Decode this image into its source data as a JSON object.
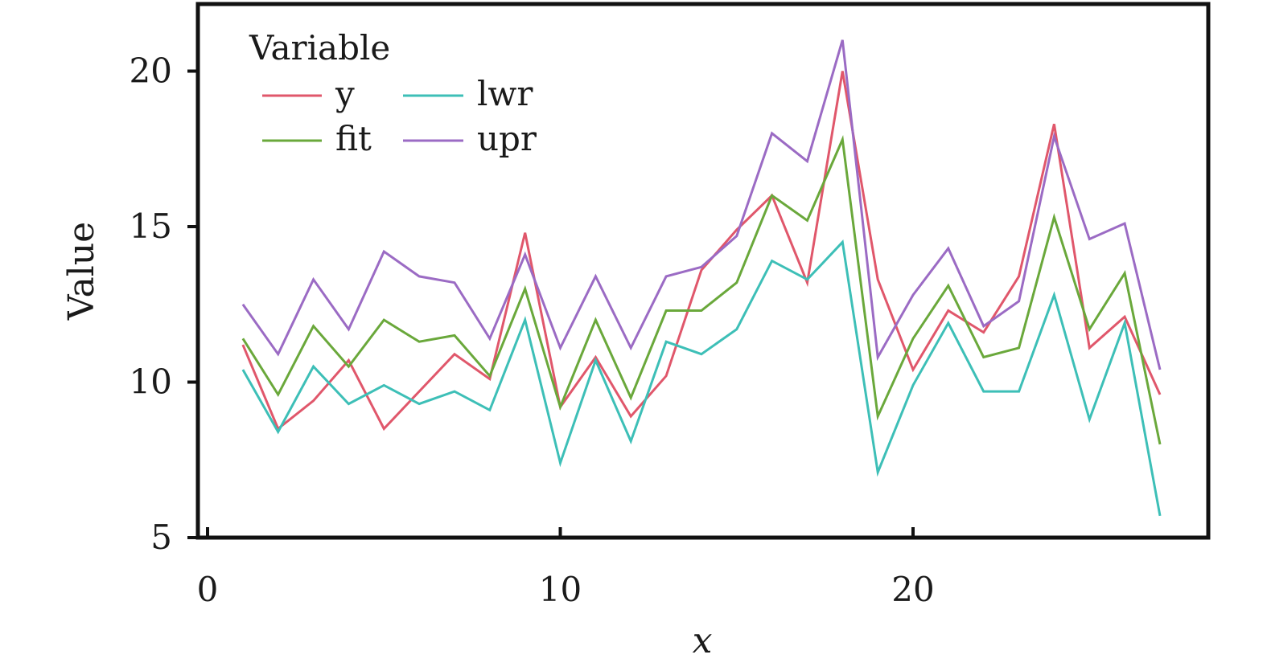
{
  "chart_data": {
    "type": "line",
    "xlabel": "x",
    "ylabel": "Value",
    "xlim": [
      0,
      28
    ],
    "ylim": [
      5,
      21.5
    ],
    "xticks": [
      0,
      10,
      20
    ],
    "yticks": [
      5,
      10,
      15,
      20
    ],
    "grid": false,
    "legend_title": "Variable",
    "legend_position": "top-left",
    "x": [
      1,
      2,
      3,
      4,
      5,
      6,
      7,
      8,
      9,
      10,
      11,
      12,
      13,
      14,
      15,
      16,
      17,
      18,
      19,
      20,
      21,
      22,
      23,
      24,
      25,
      26,
      27
    ],
    "series": [
      {
        "name": "y",
        "color": "#e0576b",
        "values": [
          11.2,
          8.5,
          9.4,
          10.7,
          8.5,
          9.7,
          10.9,
          10.1,
          14.8,
          9.2,
          10.8,
          8.9,
          10.2,
          13.6,
          14.9,
          16.0,
          13.2,
          20.0,
          13.3,
          10.4,
          12.3,
          11.6,
          13.4,
          18.3,
          11.1,
          12.1,
          9.6
        ]
      },
      {
        "name": "lwr",
        "color": "#3dbfb7",
        "values": [
          10.4,
          8.4,
          10.5,
          9.3,
          9.9,
          9.3,
          9.7,
          9.1,
          12.0,
          7.4,
          10.7,
          8.1,
          11.3,
          10.9,
          11.7,
          13.9,
          13.3,
          14.5,
          7.1,
          9.9,
          11.9,
          9.7,
          9.7,
          12.8,
          8.8,
          11.9,
          5.7
        ]
      },
      {
        "name": "fit",
        "color": "#6aa83b",
        "values": [
          11.4,
          9.6,
          11.8,
          10.5,
          12.0,
          11.3,
          11.5,
          10.2,
          13.0,
          9.2,
          12.0,
          9.5,
          12.3,
          12.3,
          13.2,
          16.0,
          15.2,
          17.8,
          8.9,
          11.4,
          13.1,
          10.8,
          11.1,
          15.3,
          11.7,
          13.5,
          8.0
        ]
      },
      {
        "name": "upr",
        "color": "#9b6bc4",
        "values": [
          12.5,
          10.9,
          13.3,
          11.7,
          14.2,
          13.4,
          13.2,
          11.4,
          14.1,
          11.1,
          13.4,
          11.1,
          13.4,
          13.7,
          14.7,
          18.0,
          17.1,
          21.0,
          10.8,
          12.8,
          14.3,
          11.8,
          12.6,
          17.9,
          14.6,
          15.1,
          10.4
        ]
      }
    ]
  }
}
